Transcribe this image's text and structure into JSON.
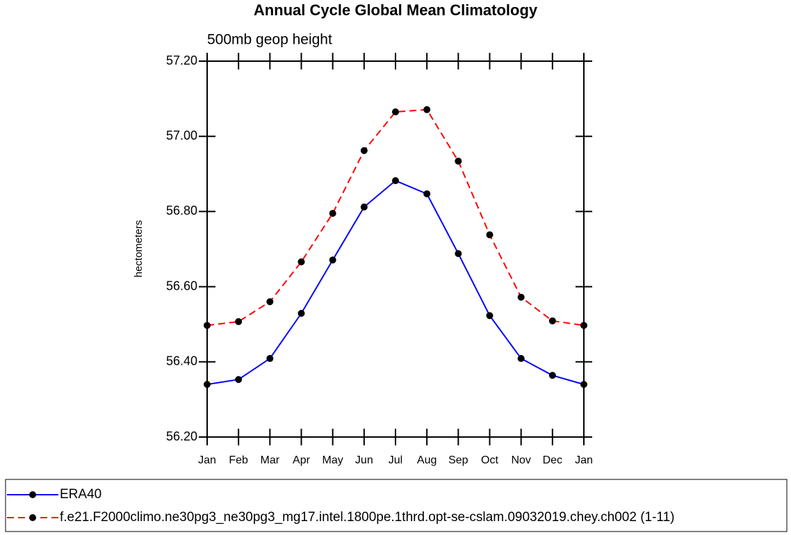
{
  "chart_data": {
    "type": "line",
    "title": "Annual Cycle Global Mean Climatology",
    "subtitle": "500mb geop height",
    "y_label": "hectometers",
    "categories": [
      "Jan",
      "Feb",
      "Mar",
      "Apr",
      "May",
      "Jun",
      "Jul",
      "Aug",
      "Sep",
      "Oct",
      "Nov",
      "Dec",
      "Jan"
    ],
    "series": [
      {
        "name": "ERA40",
        "color": "#0000ff",
        "style": "solid",
        "values": [
          56.34,
          56.353,
          56.409,
          56.529,
          56.671,
          56.812,
          56.882,
          56.847,
          56.688,
          56.523,
          56.409,
          56.364,
          56.34
        ]
      },
      {
        "name": "f.e21.F2000climo.ne30pg3_ne30pg3_mg17.intel.1800pe.1thrd.opt-se-cslam.09032019.chey.ch002 (1-11)",
        "color": "#ff0000",
        "style": "dashed",
        "values": [
          56.497,
          56.507,
          56.56,
          56.666,
          56.795,
          56.962,
          57.065,
          57.071,
          56.934,
          56.738,
          56.572,
          56.509,
          56.497
        ]
      }
    ],
    "marker_color": "#000000",
    "ylim": [
      56.2,
      57.2
    ],
    "yticks": [
      {
        "value": 56.2,
        "label": "56.20"
      },
      {
        "value": 56.4,
        "label": "56.40"
      },
      {
        "value": 56.6,
        "label": "56.60"
      },
      {
        "value": 56.8,
        "label": "56.80"
      },
      {
        "value": 57.0,
        "label": "57.00"
      },
      {
        "value": 57.2,
        "label": "57.20"
      }
    ]
  }
}
